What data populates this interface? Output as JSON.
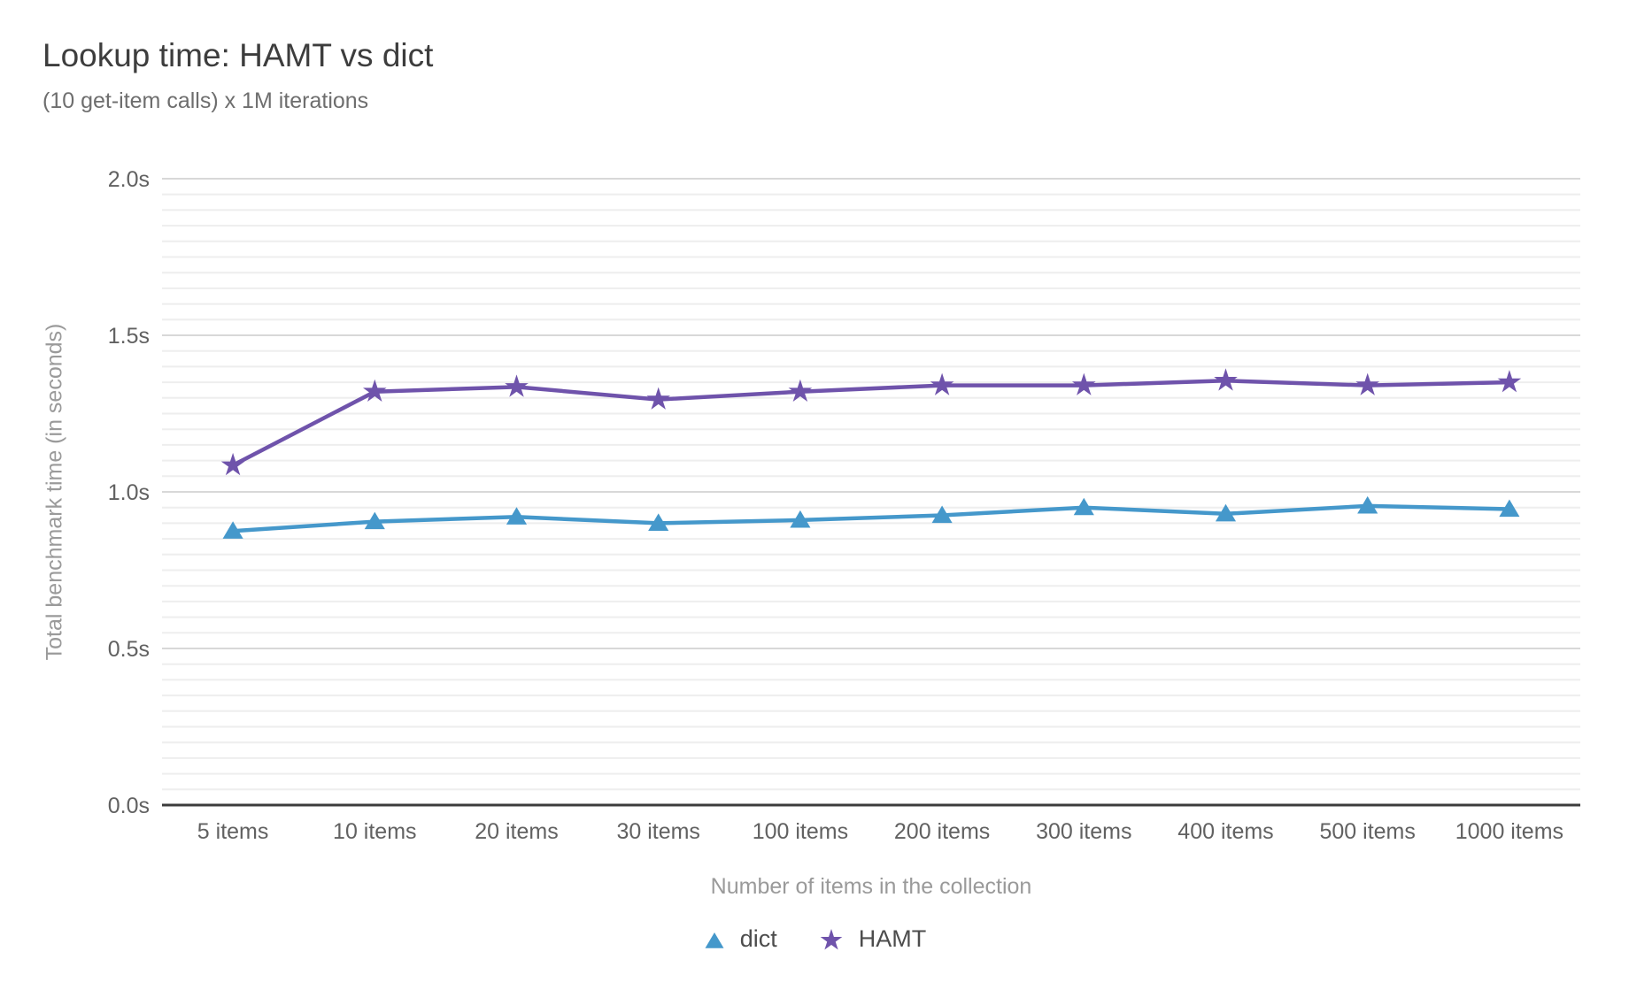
{
  "title": "Lookup time: HAMT vs dict",
  "subtitle": "(10 get-item calls) x 1M iterations",
  "axes": {
    "x_title": "Number of items in the collection",
    "y_title": "Total benchmark time (in seconds)"
  },
  "legend": {
    "items": [
      {
        "label": "dict",
        "marker": "triangle-up",
        "color": "#4598cb"
      },
      {
        "label": "HAMT",
        "marker": "star",
        "color": "#6f53ab"
      }
    ]
  },
  "colors": {
    "dict_series": "#4598cb",
    "hamt_series": "#6f53ab",
    "grid_major": "#d8d8d8",
    "grid_minor": "#eeeeee",
    "axis_line": "#3c3c3c",
    "tick_text": "#616161",
    "axis_title_text": "#9a9a9a",
    "background": "#ffffff"
  },
  "chart_data": {
    "type": "line",
    "title": "Lookup time: HAMT vs dict",
    "subtitle": "(10 get-item calls) x 1M iterations",
    "xlabel": "Number of items in the collection",
    "ylabel": "Total benchmark time (in seconds)",
    "categories": [
      "5 items",
      "10 items",
      "20 items",
      "30 items",
      "100 items",
      "200 items",
      "300 items",
      "400 items",
      "500 items",
      "1000 items"
    ],
    "series": [
      {
        "name": "dict",
        "marker": "triangle-up",
        "color": "#4598cb",
        "values": [
          0.875,
          0.905,
          0.92,
          0.9,
          0.91,
          0.925,
          0.95,
          0.93,
          0.955,
          0.945
        ]
      },
      {
        "name": "HAMT",
        "marker": "star",
        "color": "#6f53ab",
        "values": [
          1.085,
          1.32,
          1.335,
          1.295,
          1.32,
          1.34,
          1.34,
          1.355,
          1.34,
          1.35
        ]
      }
    ],
    "ylim": [
      0,
      2.0
    ],
    "ytick_step": 0.5,
    "yminor_step": 0.05,
    "ytick_labels": [
      "0.0s",
      "0.5s",
      "1.0s",
      "1.5s",
      "2.0s"
    ],
    "grid": true,
    "legend_position": "bottom"
  }
}
